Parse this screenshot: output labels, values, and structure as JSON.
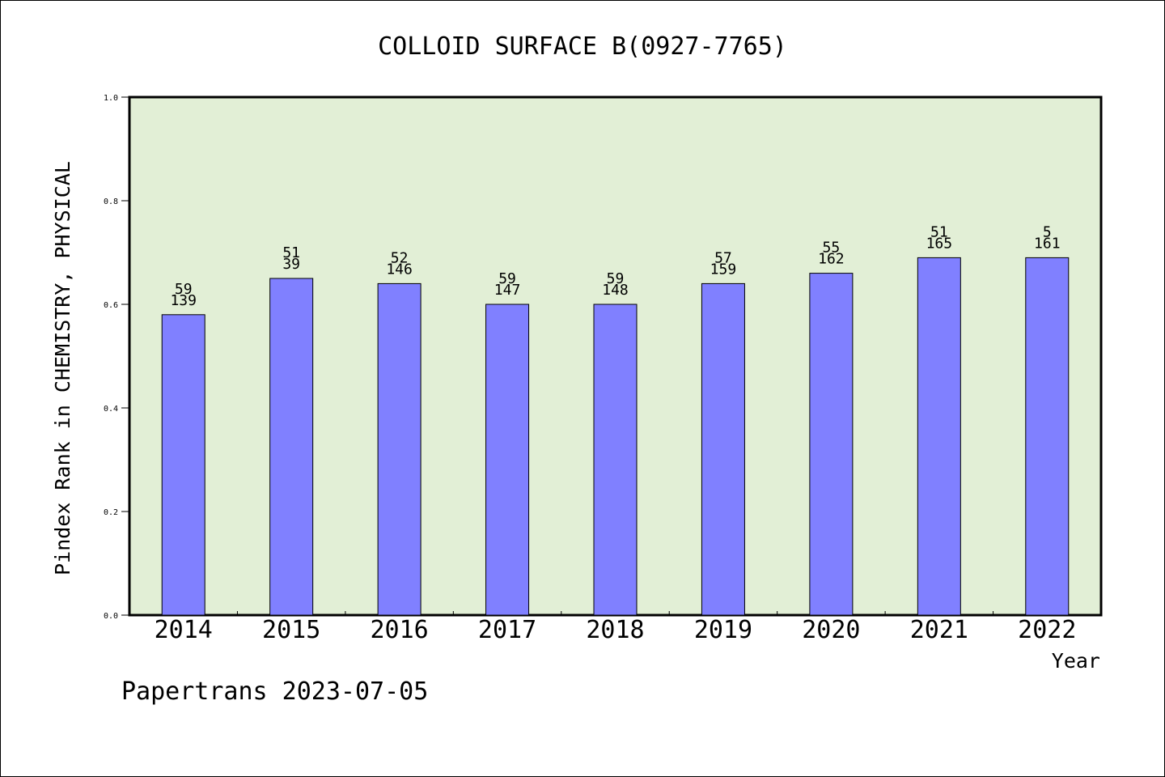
{
  "chart_data": {
    "type": "bar",
    "title": "COLLOID SURFACE B(0927-7765)",
    "xlabel": "Year",
    "ylabel": "Pindex Rank in CHEMISTRY, PHYSICAL",
    "footer": "Papertrans 2023-07-05",
    "ylim": [
      0,
      1.0
    ],
    "yticks": [
      0.0,
      0.2,
      0.4,
      0.6,
      0.8,
      1.0
    ],
    "ytick_labels": [
      "0.0",
      "0.2",
      "0.4",
      "0.6",
      "0.8",
      "1.0"
    ],
    "grid": false,
    "categories": [
      "2014",
      "2015",
      "2016",
      "2017",
      "2018",
      "2019",
      "2020",
      "2021",
      "2022"
    ],
    "values": [
      0.58,
      0.65,
      0.64,
      0.6,
      0.6,
      0.64,
      0.66,
      0.69,
      0.69
    ],
    "rank_labels": [
      "59",
      "51",
      "52",
      "59",
      "59",
      "57",
      "55",
      "51",
      "5"
    ],
    "total_labels": [
      "139",
      "39",
      "146",
      "147",
      "148",
      "159",
      "162",
      "165",
      "161"
    ],
    "colors": {
      "bar_fill": "#8080ff",
      "plot_background": "#e2efd6",
      "axis": "#000000"
    }
  }
}
